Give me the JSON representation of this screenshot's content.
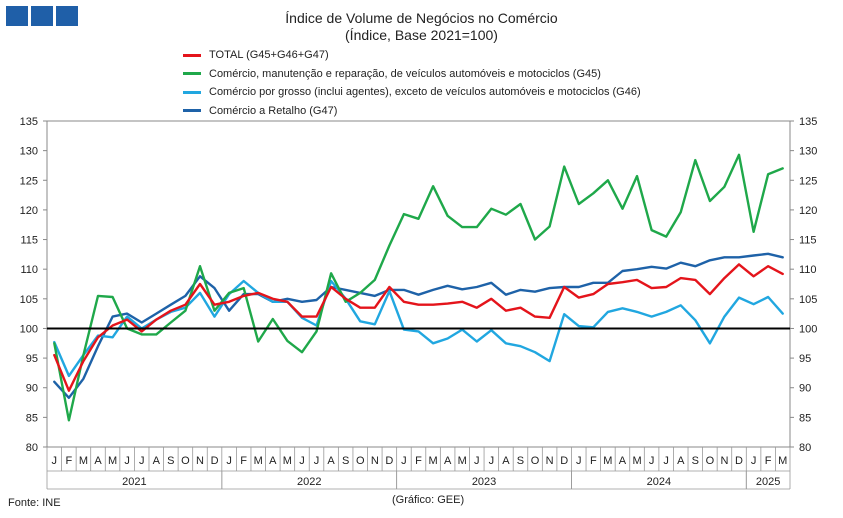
{
  "header": {
    "logo_icon": "ine-logo-icon"
  },
  "chart_data": {
    "type": "line",
    "title": "Índice de Volume de Negócios no Comércio",
    "subtitle": "(Índice, Base 2021=100)",
    "ylim": [
      80,
      135
    ],
    "yticks": [
      80,
      85,
      90,
      95,
      100,
      105,
      110,
      115,
      120,
      125,
      130,
      135
    ],
    "reference_line": 100,
    "legend_position": "top",
    "month_labels": [
      "J",
      "F",
      "M",
      "A",
      "M",
      "J",
      "J",
      "A",
      "S",
      "O",
      "N",
      "D",
      "J",
      "F",
      "M",
      "A",
      "M",
      "J",
      "J",
      "A",
      "S",
      "O",
      "N",
      "D",
      "J",
      "F",
      "M",
      "A",
      "M",
      "J",
      "J",
      "A",
      "S",
      "O",
      "N",
      "D",
      "J",
      "F",
      "M",
      "A",
      "M",
      "J",
      "J",
      "A",
      "S",
      "O",
      "N",
      "D",
      "J",
      "F",
      "M"
    ],
    "year_groups": [
      {
        "label": "2021",
        "start": 0,
        "count": 12
      },
      {
        "label": "2022",
        "start": 12,
        "count": 12
      },
      {
        "label": "2023",
        "start": 24,
        "count": 12
      },
      {
        "label": "2024",
        "start": 36,
        "count": 12
      },
      {
        "label": "2025",
        "start": 48,
        "count": 3
      }
    ],
    "series": [
      {
        "name": "TOTAL (G45+G46+G47)",
        "color": "#e4141b",
        "values": [
          95.5,
          89.5,
          94.5,
          98.5,
          100.5,
          101.5,
          99.5,
          101.5,
          103,
          104,
          107.5,
          104,
          104.5,
          105.5,
          106,
          105,
          104.5,
          102,
          102,
          107,
          105,
          103.5,
          103.5,
          107,
          104.5,
          104,
          104,
          104.2,
          104.5,
          103.5,
          105,
          103,
          103.5,
          102,
          101.8,
          107,
          105.2,
          105.8,
          107.5,
          107.8,
          108.2,
          106.8,
          107,
          108.5,
          108.2,
          105.8,
          108.5,
          110.8,
          108.8,
          110.5,
          109.2
        ]
      },
      {
        "name": "Comércio, manutenção e reparação, de veículos automóveis e motociclos (G45)",
        "color": "#1fa84a",
        "values": [
          97.5,
          84.5,
          95.5,
          105.5,
          105.3,
          100,
          99,
          99,
          101,
          103,
          110.5,
          103,
          106,
          106.8,
          97.8,
          101.6,
          97.9,
          96,
          99.5,
          109.3,
          104.5,
          106,
          108.2,
          114,
          119.3,
          118.5,
          124,
          119,
          117.1,
          117.1,
          120.2,
          119.2,
          121,
          115,
          117.2,
          127.3,
          121,
          122.8,
          125,
          120.2,
          125.7,
          116.6,
          115.5,
          119.6,
          128.4,
          121.5,
          123.9,
          129.3,
          116.3,
          126,
          127
        ]
      },
      {
        "name": "Comércio por grosso (inclui agentes), exceto de veículos automóveis e motociclos (G46)",
        "color": "#21a7e0",
        "values": [
          97.7,
          92,
          95.5,
          98.8,
          98.5,
          102,
          100,
          101.5,
          102.8,
          103.5,
          106,
          102,
          105.8,
          108,
          106,
          104.5,
          104.5,
          101.8,
          100.5,
          108,
          105,
          101.2,
          100.7,
          106.3,
          99.8,
          99.5,
          97.5,
          98.3,
          99.8,
          97.8,
          99.7,
          97.5,
          97,
          96,
          94.5,
          102.4,
          100.4,
          100.2,
          102.8,
          103.4,
          102.8,
          102,
          102.8,
          103.9,
          101.4,
          97.5,
          102,
          105.2,
          104.1,
          105.3,
          102.5
        ]
      },
      {
        "name": "Comércio a Retalho (G47)",
        "color": "#1e62a8",
        "values": [
          91,
          88.3,
          91.5,
          97,
          102,
          102.5,
          101,
          102.5,
          104,
          105.5,
          108.8,
          106.8,
          103,
          105.8,
          105.8,
          104.5,
          105,
          104.5,
          104.8,
          107,
          106.5,
          106,
          105.5,
          106.5,
          106.5,
          105.7,
          106.5,
          107.2,
          106.6,
          107,
          107.7,
          105.7,
          106.5,
          106.2,
          106.8,
          107,
          107,
          107.7,
          107.7,
          109.7,
          110,
          110.4,
          110.1,
          111.1,
          110.5,
          111.5,
          112,
          112,
          112.3,
          112.6,
          112
        ]
      }
    ]
  },
  "footer": {
    "source": "Fonte: INE",
    "credit": "(Gráfico: GEE)"
  }
}
